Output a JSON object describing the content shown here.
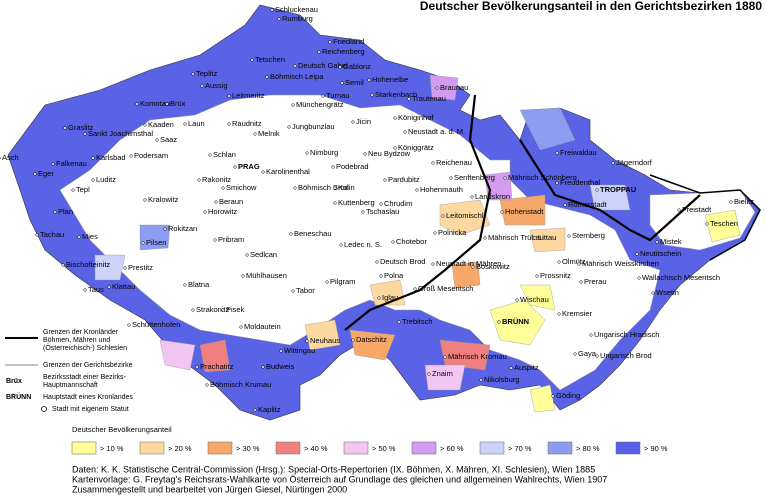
{
  "title": "Deutscher Bevölkerungsanteil in den Gerichtsbezirken 1880",
  "towns": [
    "Schluckenau",
    "Rumburg",
    "Friedland",
    "Reichenberg",
    "Tetschen",
    "Deutsch Gabel",
    "Gablonz",
    "Böhmisch Leipa",
    "Teplitz",
    "Aussig",
    "Semil",
    "Hohenelbe",
    "Braunau",
    "Komotau",
    "Brüx",
    "Leitmeritz",
    "Münchengrätz",
    "Turnau",
    "Starkenbach",
    "Trautenau",
    "Graslitz",
    "Sankt Joachimsthal",
    "Kaaden",
    "Saaz",
    "Laun",
    "Raudnitz",
    "Jungbunzlau",
    "Jicin",
    "Königinhof",
    "Neustadt a. d. M.",
    "Asch",
    "Falkenau",
    "Karlsbad",
    "Podersam",
    "Melnik",
    "Schlan",
    "PRAG",
    "Karolinenthal",
    "Nimburg",
    "Podebrad",
    "Neu Bydzow",
    "Königgrätz",
    "Freiwaldau",
    "Jägerndorf",
    "Eger",
    "Luditz",
    "Rakonitz",
    "Smichow",
    "Böhmisch Brod",
    "Kolin",
    "Reichenau",
    "Senftenberg",
    "Mährisch Schönberg",
    "Freudenthal",
    "TROPPAU",
    "Tepl",
    "Beraun",
    "Kuttenberg",
    "Pardubitz",
    "Hohenmauth",
    "Landskron",
    "Hohenstadt",
    "Chrudim",
    "Freistadt",
    "Bielitz",
    "Kralowitz",
    "Plan",
    "Horowitz",
    "Tschaslau",
    "Leitomischl",
    "Römerstadt",
    "Teschen",
    "Tachau",
    "Mies",
    "Rokitzan",
    "Pribram",
    "Beneschau",
    "Ledec n. S.",
    "Chotebor",
    "Polnicka",
    "Mährisch Trübau",
    "Littau",
    "Sternberg",
    "Mistek",
    "Neutitschein",
    "Pilsen",
    "Olmütz",
    "Prestitz",
    "Sedlcan",
    "Deutsch Brod",
    "Boskowitz",
    "Mährisch Weisskirchen",
    "Bischofteinitz",
    "Mühlhausen",
    "Pilgram",
    "Neustadt in Mähren",
    "Prossnitz",
    "Prerau",
    "Wallachisch Meseritsch",
    "Klattau",
    "Blatna",
    "Tabor",
    "Polna",
    "Groß Meseritsch",
    "Wsetin",
    "Taus",
    "Iglau",
    "Strakonitz",
    "Pisek",
    "Wischau",
    "Trebitsch",
    "BRÜNN",
    "Kremsier",
    "Schüttenhofen",
    "Moldautein",
    "Neuhaus",
    "Datschitz",
    "Ungarisch Hradisch",
    "Wittingau",
    "Mährisch Kromau",
    "Gaya",
    "Ungarisch Brod",
    "Prachatitz",
    "Budweis",
    "Znaim",
    "Auspitz",
    "Nikolsburg",
    "Böhmisch Krumau",
    "Kaplitz",
    "Göding"
  ],
  "key": {
    "borders_crown": [
      "Grenzen der Kronländer",
      "Böhmen, Mähren und",
      "(Österreichisch-) Schlesien"
    ],
    "borders_district": "Grenzen der Gerichtsbezirke",
    "district_town_sample": "Brüx",
    "district_town": [
      "Bezirksstadt einer Bezirks-",
      "Hauptmannschaft"
    ],
    "capital_sample": "BRÜNN",
    "capital": "Hauptstadt eines Kronlandes",
    "statute_town": "Stadt mit eigenem Statut"
  },
  "legend": {
    "title": "Deutscher Bevölkerungsanteil",
    "items": [
      {
        "label": "> 10 %",
        "color": "#ffff99"
      },
      {
        "label": "> 20 %",
        "color": "#fdd8a0"
      },
      {
        "label": "> 30 %",
        "color": "#f5a86a"
      },
      {
        "label": "> 40 %",
        "color": "#f08080"
      },
      {
        "label": "> 50 %",
        "color": "#f2c6f2"
      },
      {
        "label": "> 60 %",
        "color": "#d39cf0"
      },
      {
        "label": "> 70 %",
        "color": "#ccd2f8"
      },
      {
        "label": "> 80 %",
        "color": "#8c9cf0"
      },
      {
        "label": "> 90 %",
        "color": "#5560e6"
      }
    ]
  },
  "footer": [
    "Daten: K. K. Statistische Central-Commission (Hrsg.): Special-Orts-Repertorien (IX. Böhmen, X. Mähren, XI. Schlesien), Wien 1885",
    "Kartenvorlage: G. Freytag's Reichsrats-Wahlkarte von Österreich auf Grundlage des gleichen und allgemeinen Wahlrechts, Wien 1907",
    "Zusammengestellt und bearbeitet von Jürgen Giesel, Nürtingen 2000"
  ]
}
